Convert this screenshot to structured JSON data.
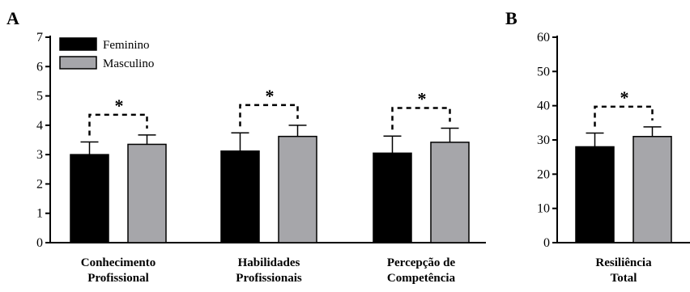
{
  "panels": [
    "A",
    "B"
  ],
  "colors": {
    "feminino": "#000000",
    "masculino": "#a6a6aa"
  },
  "legend": [
    "Feminino",
    "Masculino"
  ],
  "significance_mark": "*",
  "chart_data": [
    {
      "type": "bar",
      "panel": "A",
      "categories": [
        [
          "Conhecimento",
          "Profissional"
        ],
        [
          "Habilidades",
          "Profissionais"
        ],
        [
          "Percepção de",
          "Competência"
        ]
      ],
      "series": [
        {
          "name": "Feminino",
          "values": [
            3.0,
            3.12,
            3.05
          ],
          "errors": [
            0.43,
            0.62,
            0.58
          ]
        },
        {
          "name": "Masculino",
          "values": [
            3.35,
            3.62,
            3.42
          ],
          "errors": [
            0.32,
            0.38,
            0.48
          ]
        }
      ],
      "ylim": [
        0,
        7
      ],
      "yticks": [
        0,
        1,
        2,
        3,
        4,
        5,
        6,
        7
      ],
      "significance": [
        "*",
        "*",
        "*"
      ],
      "legend_position": "top-left",
      "grid": false
    },
    {
      "type": "bar",
      "panel": "B",
      "categories": [
        [
          "Resiliência",
          "Total"
        ]
      ],
      "series": [
        {
          "name": "Feminino",
          "values": [
            28.0
          ],
          "errors": [
            4.0
          ]
        },
        {
          "name": "Masculino",
          "values": [
            31.0
          ],
          "errors": [
            2.8
          ]
        }
      ],
      "ylim": [
        0,
        60
      ],
      "yticks": [
        0,
        10,
        20,
        30,
        40,
        50,
        60
      ],
      "significance": [
        "*"
      ],
      "grid": false
    }
  ]
}
